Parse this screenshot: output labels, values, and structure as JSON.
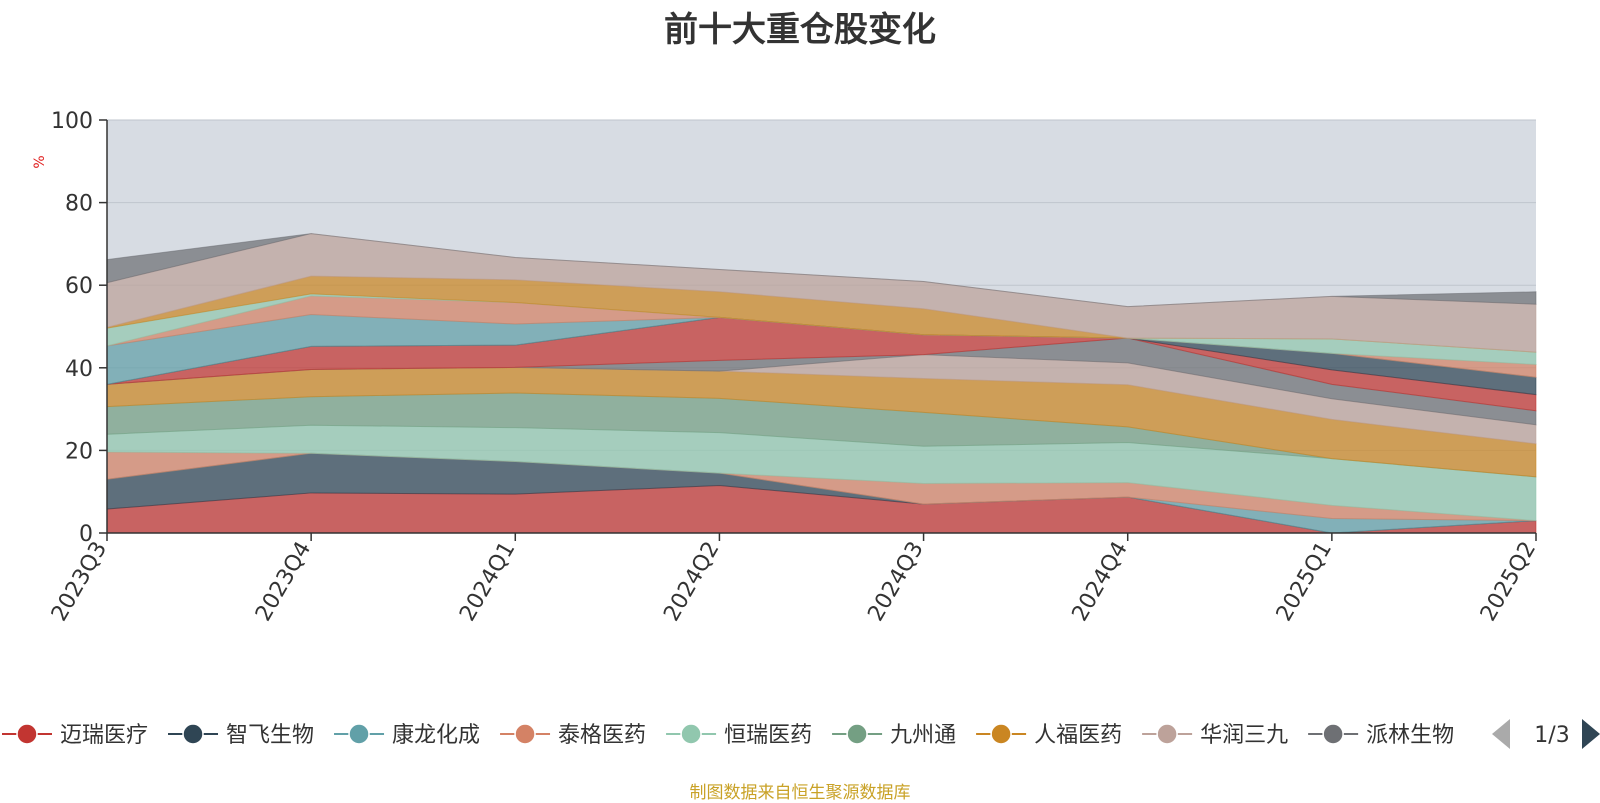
{
  "chart_data": {
    "type": "area",
    "title": "前十大重仓股变化",
    "ylabel": "%",
    "xlabel": "",
    "ylim": [
      0,
      100
    ],
    "yticks": [
      0,
      20,
      40,
      60,
      80,
      100
    ],
    "stacked": true,
    "grid": true,
    "legend_position": "bottom",
    "categories": [
      "2023Q3",
      "2023Q4",
      "2024Q1",
      "2024Q2",
      "2024Q3",
      "2024Q4",
      "2025Q1",
      "2025Q2"
    ],
    "series": [
      {
        "name": "迈瑞医疗",
        "color": "#c23531",
        "values": [
          5.8,
          9.7,
          9.4,
          11.5,
          7.0,
          8.7,
          0.0,
          3.0
        ]
      },
      {
        "name": "智飞生物",
        "color": "#2f4554",
        "values": [
          7.2,
          9.6,
          7.9,
          3.0,
          0.0,
          0.0,
          0.0,
          0.0
        ]
      },
      {
        "name": "康龙化成",
        "color": "#61a0a8",
        "values": [
          0.0,
          0.0,
          0.0,
          0.0,
          0.0,
          0.0,
          3.5,
          0.0
        ]
      },
      {
        "name": "泰格医药",
        "color": "#d48265",
        "values": [
          6.6,
          0.0,
          0.0,
          0.0,
          5.0,
          3.5,
          3.2,
          0.0
        ]
      },
      {
        "name": "恒瑞医药",
        "color": "#91c7ae",
        "values": [
          4.3,
          6.8,
          8.2,
          9.8,
          9.0,
          9.7,
          11.3,
          10.6
        ]
      },
      {
        "name": "九州通",
        "color": "#749f83",
        "values": [
          6.7,
          6.9,
          8.4,
          8.3,
          8.2,
          3.8,
          0.0,
          0.0
        ]
      },
      {
        "name": "人福医药",
        "color": "#ca8622",
        "values": [
          5.4,
          6.6,
          6.2,
          6.6,
          8.2,
          10.2,
          9.5,
          8.0
        ]
      },
      {
        "name": "华润三九",
        "color": "#bda29a",
        "values": [
          0.0,
          0.0,
          0.0,
          0.0,
          5.8,
          5.3,
          5.0,
          4.6
        ]
      },
      {
        "name": "派林生物",
        "color": "#6e7074",
        "values": [
          0.0,
          0.0,
          0.0,
          2.6,
          0.0,
          6.0,
          3.5,
          3.4
        ]
      },
      {
        "name": "迈瑞医疗",
        "color": "#c23531",
        "values": [
          0.0,
          5.6,
          5.4,
          10.4,
          4.8,
          0.0,
          3.5,
          3.9
        ]
      },
      {
        "name": "智飞生物",
        "color": "#2f4554",
        "values": [
          0.0,
          0.0,
          0.0,
          0.0,
          0.0,
          0.0,
          4.0,
          4.2
        ]
      },
      {
        "name": "康龙化成",
        "color": "#61a0a8",
        "values": [
          9.3,
          7.7,
          5.1,
          0.0,
          0.0,
          0.0,
          0.0,
          0.0
        ]
      },
      {
        "name": "泰格医药",
        "color": "#d48265",
        "values": [
          0.0,
          4.5,
          5.2,
          0.0,
          0.0,
          0.0,
          0.0,
          3.1
        ]
      },
      {
        "name": "恒瑞医药",
        "color": "#91c7ae",
        "values": [
          4.3,
          0.5,
          0.0,
          0.0,
          0.0,
          0.0,
          3.5,
          3.0
        ]
      },
      {
        "name": "人福医药",
        "color": "#ca8622",
        "values": [
          0.2,
          4.3,
          5.5,
          6.2,
          6.3,
          0.0,
          0.0,
          0.0
        ]
      },
      {
        "name": "华润三九",
        "color": "#bda29a",
        "values": [
          10.8,
          10.3,
          5.4,
          5.4,
          6.6,
          7.6,
          10.3,
          11.6
        ]
      },
      {
        "name": "派林生物",
        "color": "#6e7074",
        "values": [
          5.6,
          0.0,
          0.0,
          0.0,
          0.0,
          0.0,
          0.0,
          3.0
        ]
      }
    ]
  },
  "legend": {
    "items": [
      {
        "label": "迈瑞医疗",
        "color": "#c23531"
      },
      {
        "label": "智飞生物",
        "color": "#2f4554"
      },
      {
        "label": "康龙化成",
        "color": "#61a0a8"
      },
      {
        "label": "泰格医药",
        "color": "#d48265"
      },
      {
        "label": "恒瑞医药",
        "color": "#91c7ae"
      },
      {
        "label": "九州通",
        "color": "#749f83"
      },
      {
        "label": "人福医药",
        "color": "#ca8622"
      },
      {
        "label": "华润三九",
        "color": "#bda29a"
      },
      {
        "label": "派林生物",
        "color": "#6e7074"
      }
    ],
    "page": "1/3",
    "prev_icon": "triangle-left-icon",
    "next_icon": "triangle-right-icon"
  },
  "plot_background": "#d7dce3",
  "source": "制图数据来自恒生聚源数据库"
}
